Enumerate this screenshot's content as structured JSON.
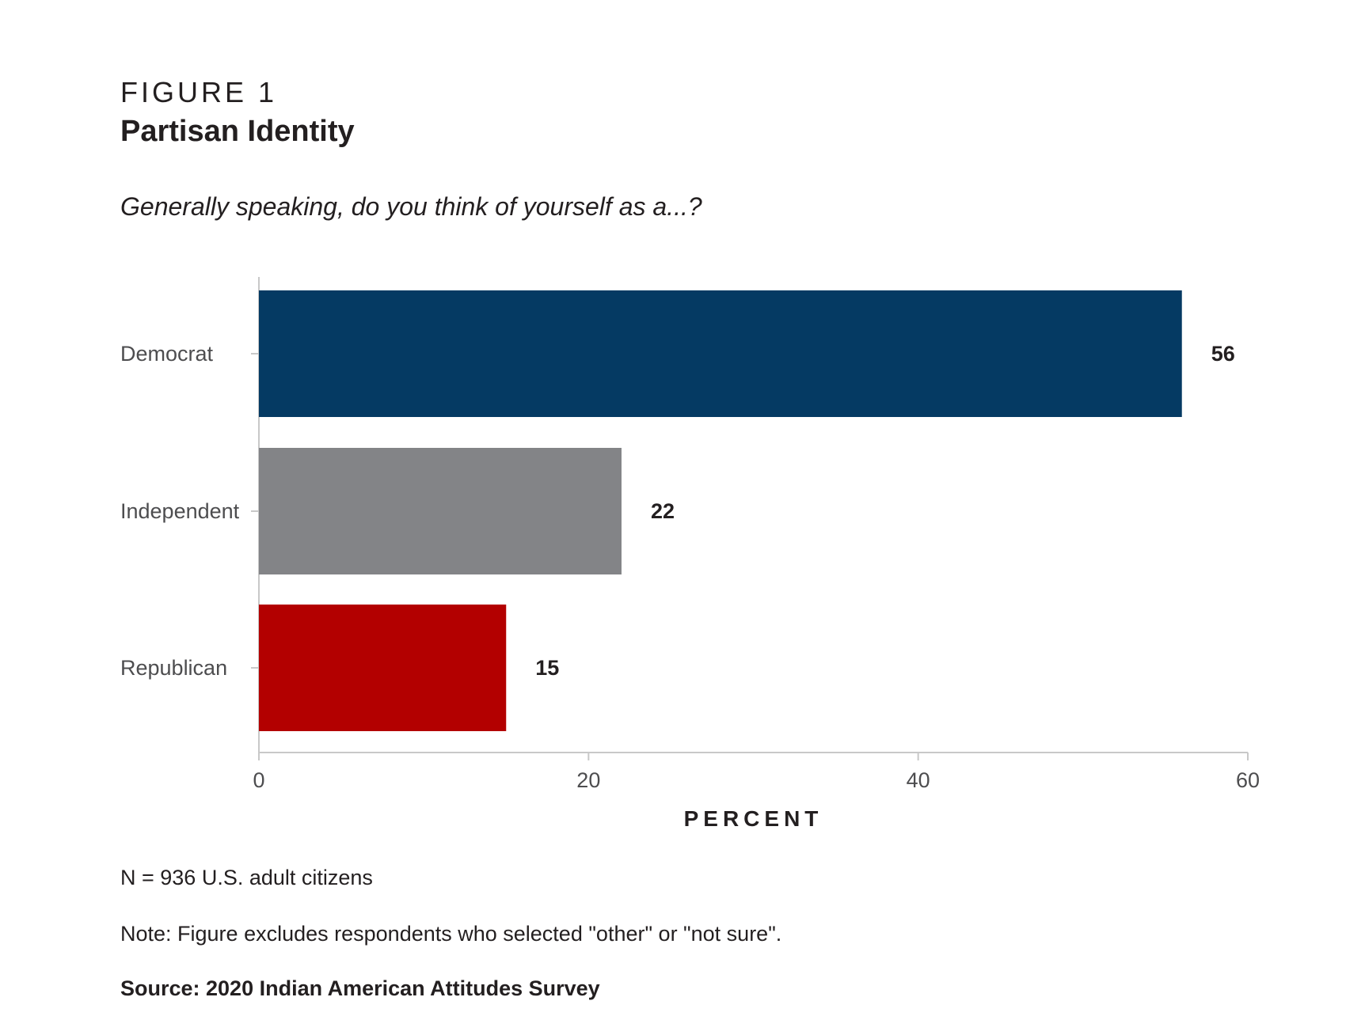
{
  "figure": {
    "label": "FIGURE 1",
    "title": "Partisan Identity",
    "question": "Generally speaking, do you think of yourself as a...?"
  },
  "chart_data": {
    "type": "bar",
    "orientation": "horizontal",
    "categories": [
      "Democrat",
      "Independent",
      "Republican"
    ],
    "values": [
      56,
      22,
      15
    ],
    "colors": [
      "#053a63",
      "#838487",
      "#b30000"
    ],
    "xlabel": "PERCENT",
    "ylabel": "",
    "xlim": [
      0,
      60
    ],
    "xticks": [
      0,
      20,
      40,
      60
    ],
    "grid": false,
    "legend": "none"
  },
  "notes": {
    "n": "N = 936 U.S. adult citizens",
    "exclusion": "Note: Figure excludes respondents who selected \"other\" or \"not sure\".",
    "source": "Source: 2020 Indian American Attitudes Survey"
  }
}
